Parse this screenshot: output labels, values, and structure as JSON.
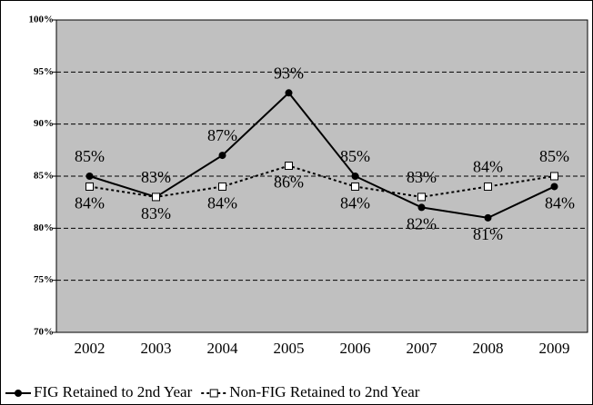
{
  "chart_data": {
    "type": "line",
    "categories": [
      "2002",
      "2003",
      "2004",
      "2005",
      "2006",
      "2007",
      "2008",
      "2009"
    ],
    "series": [
      {
        "name": "FIG Retained to 2nd Year",
        "color": "#000000",
        "marker": "circle",
        "line_style": "solid",
        "values": [
          85,
          83,
          87,
          93,
          85,
          82,
          81,
          84
        ],
        "value_labels": [
          "85%",
          "83%",
          "87%",
          "93%",
          "85%",
          "82%",
          "81%",
          "84%"
        ]
      },
      {
        "name": "Non-FIG Retained to 2nd Year",
        "color": "#000000",
        "marker": "square",
        "line_style": "dotted",
        "values": [
          84,
          83,
          84,
          86,
          84,
          83,
          84,
          85
        ],
        "value_labels": [
          "84%",
          "83%",
          "84%",
          "86%",
          "84%",
          "83%",
          "84%",
          "85%"
        ]
      }
    ],
    "ylim": [
      70,
      100
    ],
    "yticks": [
      {
        "value": 70,
        "label": "70%"
      },
      {
        "value": 75,
        "label": "75%"
      },
      {
        "value": 80,
        "label": "80%"
      },
      {
        "value": 85,
        "label": "85%"
      },
      {
        "value": 90,
        "label": "90%"
      },
      {
        "value": 95,
        "label": "95%"
      },
      {
        "value": 100,
        "label": "100%"
      }
    ],
    "grid": true,
    "plot_background": "#c0c0c0",
    "legend": "bottom"
  }
}
